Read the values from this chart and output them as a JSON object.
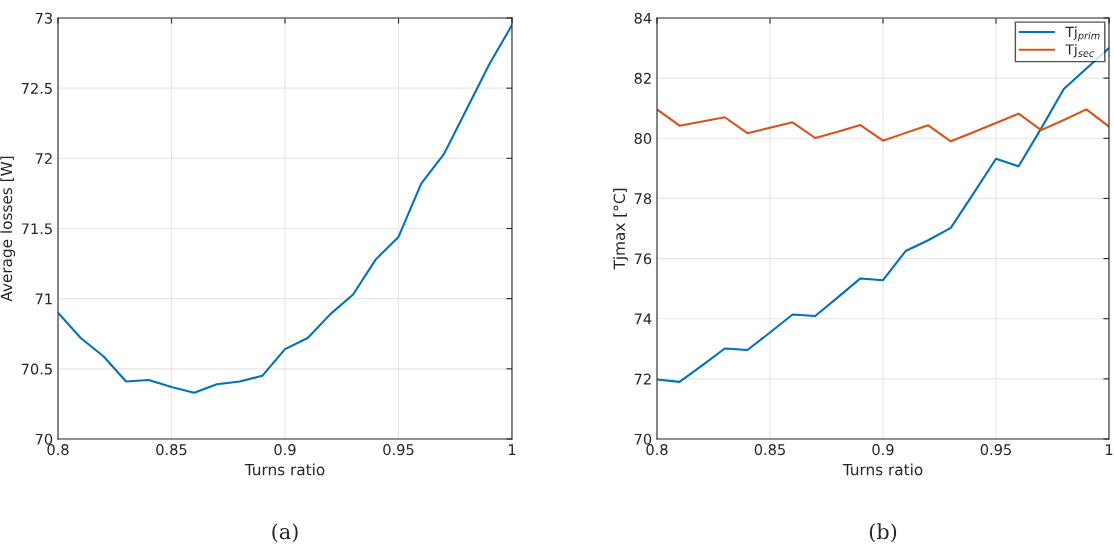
{
  "chart_data": [
    {
      "type": "line",
      "xlabel": "Turns ratio",
      "ylabel": "Average losses [W]",
      "annotations": [
        "(a)"
      ],
      "x": [
        0.8,
        0.81,
        0.82,
        0.83,
        0.84,
        0.85,
        0.86,
        0.87,
        0.88,
        0.89,
        0.9,
        0.91,
        0.92,
        0.93,
        0.94,
        0.95,
        0.96,
        0.97,
        0.98,
        0.99,
        1.0
      ],
      "series": [
        {
          "color": "#0072bd",
          "values": [
            70.9,
            70.72,
            70.59,
            70.41,
            70.42,
            70.37,
            70.33,
            70.39,
            70.41,
            70.45,
            70.64,
            70.72,
            70.89,
            71.03,
            71.28,
            71.44,
            71.82,
            72.03,
            72.35,
            72.67,
            72.95
          ]
        }
      ],
      "xlim": [
        0.8,
        1
      ],
      "xticks": [
        0.8,
        0.85,
        0.9,
        0.95,
        1
      ],
      "ylim": [
        70,
        73
      ],
      "yticks": [
        70,
        70.5,
        71,
        71.5,
        72,
        72.5,
        73
      ],
      "grid": true,
      "legend": false
    },
    {
      "type": "line",
      "xlabel": "Turns ratio",
      "ylabel": "Tjmax [°C]",
      "annotations": [
        "(b)"
      ],
      "x": [
        0.8,
        0.81,
        0.82,
        0.83,
        0.84,
        0.85,
        0.86,
        0.87,
        0.88,
        0.89,
        0.9,
        0.91,
        0.92,
        0.93,
        0.94,
        0.95,
        0.96,
        0.97,
        0.98,
        0.99,
        1.0
      ],
      "series": [
        {
          "name": "Tj$_{prim}$",
          "color": "#0072bd",
          "values": [
            71.98,
            71.9,
            72.45,
            73.01,
            72.96,
            73.54,
            74.14,
            74.09,
            74.71,
            75.34,
            75.28,
            76.25,
            76.61,
            77.02,
            78.16,
            79.32,
            79.07,
            80.33,
            81.64,
            null,
            83.0
          ]
        },
        {
          "name": "Tj$_{sec}$",
          "color": "#d95319",
          "values": [
            80.96,
            80.42,
            80.56,
            80.7,
            80.17,
            80.35,
            80.53,
            80.01,
            80.22,
            80.44,
            79.92,
            80.18,
            80.43,
            79.9,
            80.2,
            80.51,
            80.82,
            80.27,
            80.61,
            80.96,
            80.39
          ]
        }
      ],
      "xlim": [
        0.8,
        1
      ],
      "xticks": [
        0.8,
        0.85,
        0.9,
        0.95,
        1
      ],
      "ylim": [
        70,
        84
      ],
      "yticks": [
        70,
        72,
        74,
        76,
        78,
        80,
        82,
        84
      ],
      "grid": true,
      "legend": "top right"
    }
  ]
}
